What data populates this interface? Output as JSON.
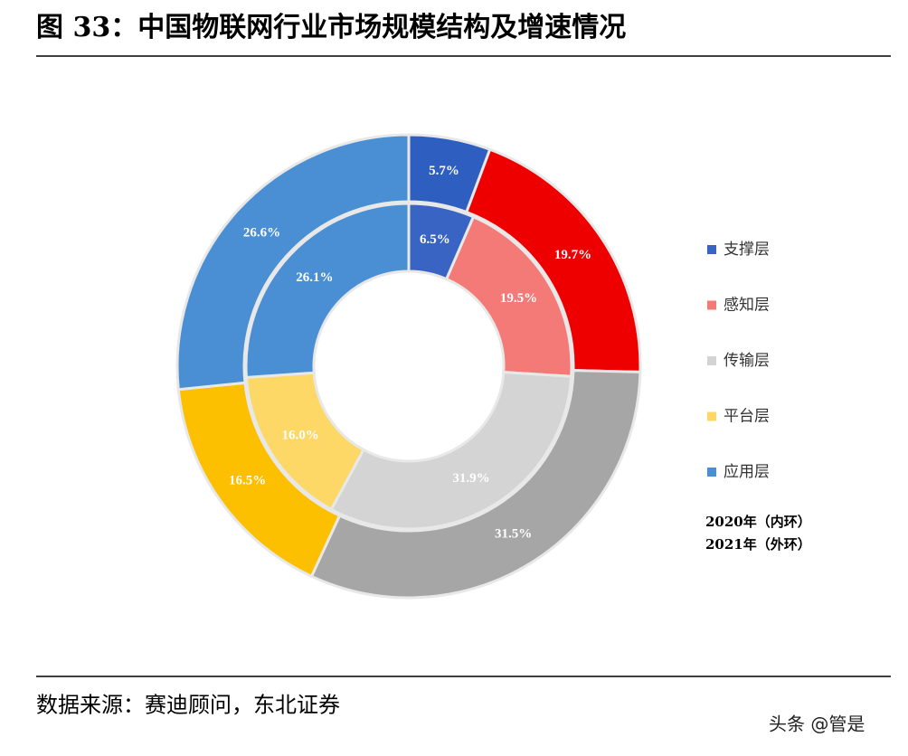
{
  "chart_data": {
    "type": "donut",
    "title": "图 33：中国物联网行业市场规模结构及增速情况",
    "categories": [
      "支撑层",
      "感知层",
      "传输层",
      "平台层",
      "应用层"
    ],
    "series": [
      {
        "name": "2020年（内环）",
        "colors": [
          "#3a64c4",
          "#f47a78",
          "#d4d4d4",
          "#fdd866",
          "#4a8fd4"
        ],
        "values": [
          6.5,
          19.5,
          31.9,
          16.0,
          26.1
        ],
        "value_labels": [
          "6.5%",
          "19.5%",
          "31.9%",
          "16.0%",
          "26.1%"
        ]
      },
      {
        "name": "2021年（外环）",
        "colors": [
          "#2e5fc0",
          "#ee0000",
          "#a6a6a6",
          "#fdc000",
          "#4a8fd4"
        ],
        "values": [
          5.7,
          19.7,
          31.5,
          16.5,
          26.6
        ],
        "value_labels": [
          "5.7%",
          "19.7%",
          "31.5%",
          "16.5%",
          "26.6%"
        ]
      }
    ],
    "source": "数据来源：赛迪顾问，东北证券",
    "watermark": "头条 @管是"
  }
}
